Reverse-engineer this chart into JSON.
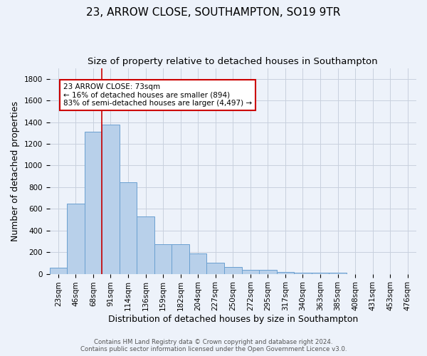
{
  "title": "23, ARROW CLOSE, SOUTHAMPTON, SO19 9TR",
  "subtitle": "Size of property relative to detached houses in Southampton",
  "xlabel": "Distribution of detached houses by size in Southampton",
  "ylabel": "Number of detached properties",
  "categories": [
    "23sqm",
    "46sqm",
    "68sqm",
    "91sqm",
    "114sqm",
    "136sqm",
    "159sqm",
    "182sqm",
    "204sqm",
    "227sqm",
    "250sqm",
    "272sqm",
    "295sqm",
    "317sqm",
    "340sqm",
    "363sqm",
    "385sqm",
    "408sqm",
    "431sqm",
    "453sqm",
    "476sqm"
  ],
  "values": [
    55,
    645,
    1310,
    1375,
    845,
    530,
    275,
    275,
    185,
    105,
    65,
    35,
    35,
    20,
    10,
    10,
    10,
    0,
    0,
    0,
    0
  ],
  "bar_color": "#b8d0ea",
  "bar_edge_color": "#6aa0d0",
  "background_color": "#edf2fa",
  "grid_color": "#c8d0de",
  "vline_x": 2.5,
  "vline_color": "#cc0000",
  "annotation_text": "23 ARROW CLOSE: 73sqm\n← 16% of detached houses are smaller (894)\n83% of semi-detached houses are larger (4,497) →",
  "annotation_box_color": "white",
  "annotation_box_edge": "#cc0000",
  "footer_line1": "Contains HM Land Registry data © Crown copyright and database right 2024.",
  "footer_line2": "Contains public sector information licensed under the Open Government Licence v3.0.",
  "ylim": [
    0,
    1900
  ],
  "yticks": [
    0,
    200,
    400,
    600,
    800,
    1000,
    1200,
    1400,
    1600,
    1800
  ],
  "title_fontsize": 11,
  "subtitle_fontsize": 9.5,
  "axis_label_fontsize": 9,
  "tick_fontsize": 7.5,
  "annot_fontsize": 7.5
}
